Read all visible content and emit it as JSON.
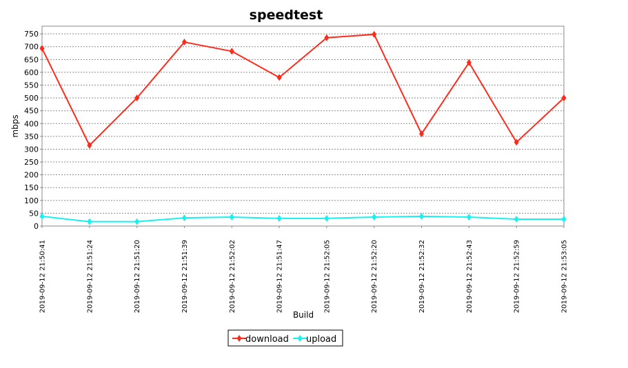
{
  "chart_data": {
    "type": "line",
    "title": "speedtest",
    "xlabel": "Build",
    "ylabel": "mbps",
    "ylim": [
      0,
      780
    ],
    "yticks": [
      0,
      50,
      100,
      150,
      200,
      250,
      300,
      350,
      400,
      450,
      500,
      550,
      600,
      650,
      700,
      750
    ],
    "grid": true,
    "legend_position": "bottom",
    "categories": [
      "2019-09-12 21:50:41",
      "2019-09-12 21:51:24",
      "2019-09-12 21:51:20",
      "2019-09-12 21:51:39",
      "2019-09-12 21:52:02",
      "2019-09-12 21:51:47",
      "2019-09-12 21:52:05",
      "2019-09-12 21:52:20",
      "2019-09-12 21:52:32",
      "2019-09-12 21:52:43",
      "2019-09-12 21:52:59",
      "2019-09-12 21:53:05"
    ],
    "series": [
      {
        "name": "download",
        "color": "#ff2a1a",
        "values": [
          693,
          315,
          500,
          718,
          682,
          580,
          735,
          748,
          360,
          638,
          327,
          500
        ]
      },
      {
        "name": "upload",
        "color": "#19f0f0",
        "values": [
          38,
          17,
          17,
          32,
          35,
          30,
          30,
          35,
          38,
          35,
          27,
          27
        ]
      }
    ]
  }
}
